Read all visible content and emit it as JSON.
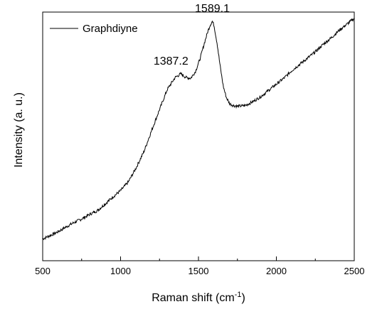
{
  "chart_data": {
    "type": "line",
    "title": "",
    "xlabel": "Raman shift (cm",
    "xlabel_sup": "-1",
    "xlabel_suffix": ")",
    "ylabel": "Intensity (a. u.)",
    "xlim": [
      500,
      2500
    ],
    "ylim": [
      0,
      1
    ],
    "y_ticks_labeled": false,
    "grid": false,
    "legend_position": "top-left",
    "x_ticks": [
      "500",
      "1000",
      "1500",
      "2000",
      "2500"
    ],
    "series": [
      {
        "name": "Graphdiyne",
        "color": "#000000",
        "x": [
          500,
          550,
          600,
          650,
          700,
          750,
          800,
          850,
          900,
          950,
          1000,
          1050,
          1100,
          1150,
          1200,
          1250,
          1300,
          1350,
          1387.2,
          1420,
          1450,
          1480,
          1510,
          1540,
          1560,
          1575,
          1589.1,
          1600,
          1620,
          1640,
          1660,
          1680,
          1700,
          1720,
          1750,
          1800,
          1850,
          1900,
          1950,
          2000,
          2050,
          2100,
          2150,
          2200,
          2250,
          2300,
          2350,
          2400,
          2450,
          2500
        ],
        "y": [
          0.088,
          0.102,
          0.117,
          0.136,
          0.153,
          0.168,
          0.186,
          0.201,
          0.228,
          0.256,
          0.282,
          0.317,
          0.374,
          0.439,
          0.525,
          0.608,
          0.689,
          0.737,
          0.752,
          0.737,
          0.734,
          0.76,
          0.812,
          0.88,
          0.922,
          0.948,
          0.963,
          0.946,
          0.873,
          0.779,
          0.699,
          0.655,
          0.632,
          0.625,
          0.621,
          0.624,
          0.64,
          0.66,
          0.685,
          0.71,
          0.735,
          0.765,
          0.79,
          0.815,
          0.84,
          0.87,
          0.895,
          0.925,
          0.95,
          0.975
        ]
      }
    ],
    "annotations": [
      {
        "text": "1387.2",
        "x": 1387.2
      },
      {
        "text": "1589.1",
        "x": 1589.1
      }
    ]
  }
}
